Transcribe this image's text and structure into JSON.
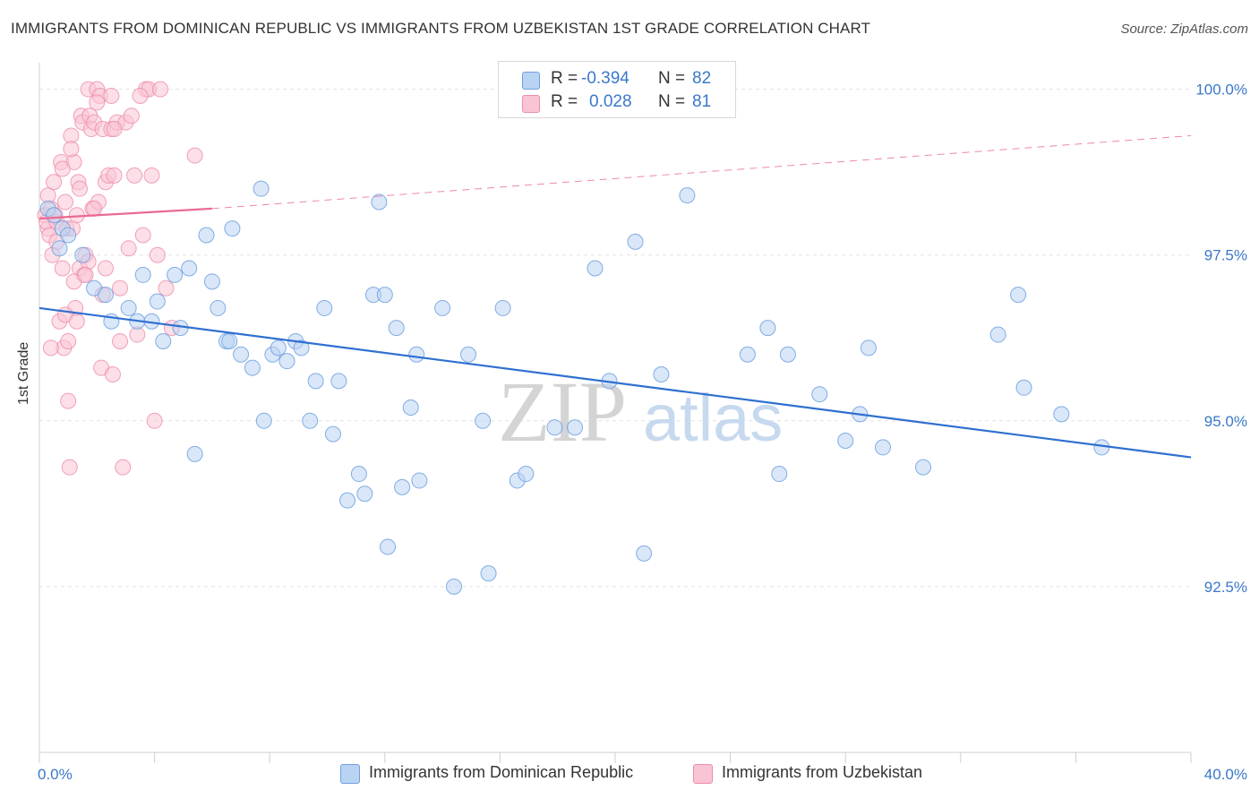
{
  "header": {
    "title": "IMMIGRANTS FROM DOMINICAN REPUBLIC VS IMMIGRANTS FROM UZBEKISTAN 1ST GRADE CORRELATION CHART",
    "source": "Source: ZipAtlas.com"
  },
  "legend": {
    "blue": {
      "r_label": "R =",
      "r_value": "-0.394",
      "n_label": "N =",
      "n_value": "82"
    },
    "pink": {
      "r_label": "R =",
      "r_value": "0.028",
      "n_label": "N =",
      "n_value": "81"
    }
  },
  "bottom_legend": {
    "blue_label": "Immigrants from Dominican Republic",
    "pink_label": "Immigrants from Uzbekistan"
  },
  "watermark": {
    "zip": "ZIP",
    "atlas": "atlas"
  },
  "colors": {
    "blue_fill": "#b9d3f3",
    "blue_stroke": "#6fa0df",
    "blue_line": "#2f6fd1",
    "pink_fill": "#f9c4d4",
    "pink_stroke": "#ec8cab",
    "pink_line": "#e86a93",
    "tick_label": "#3a78c9",
    "grid": "#e3e3e3"
  },
  "chart_data": {
    "type": "scatter",
    "title": "IMMIGRANTS FROM DOMINICAN REPUBLIC VS IMMIGRANTS FROM UZBEKISTAN 1ST GRADE CORRELATION CHART",
    "xlabel": "",
    "ylabel": "1st Grade",
    "xlim": [
      0,
      40
    ],
    "ylim": [
      90.0,
      100.4
    ],
    "x_ticks": [
      "0.0%",
      "40.0%"
    ],
    "y_ticks": [
      {
        "value": 100.0,
        "label": "100.0%"
      },
      {
        "value": 97.5,
        "label": "97.5%"
      },
      {
        "value": 95.0,
        "label": "95.0%"
      },
      {
        "value": 92.5,
        "label": "92.5%"
      }
    ],
    "grid": true,
    "series": [
      {
        "name": "Immigrants from Dominican Republic",
        "color": "#6fa0df",
        "trend": {
          "x": [
            0,
            40
          ],
          "y": [
            96.7,
            94.45
          ],
          "style": "solid"
        },
        "points": [
          [
            0.3,
            98.2
          ],
          [
            0.5,
            98.1
          ],
          [
            0.8,
            97.9
          ],
          [
            1.0,
            97.8
          ],
          [
            0.7,
            97.6
          ],
          [
            1.5,
            97.5
          ],
          [
            1.9,
            97.0
          ],
          [
            2.3,
            96.9
          ],
          [
            2.5,
            96.5
          ],
          [
            3.1,
            96.7
          ],
          [
            3.4,
            96.5
          ],
          [
            3.6,
            97.2
          ],
          [
            3.9,
            96.5
          ],
          [
            4.1,
            96.8
          ],
          [
            4.3,
            96.2
          ],
          [
            4.7,
            97.2
          ],
          [
            4.9,
            96.4
          ],
          [
            5.2,
            97.3
          ],
          [
            5.4,
            94.5
          ],
          [
            5.8,
            97.8
          ],
          [
            6.0,
            97.1
          ],
          [
            6.2,
            96.7
          ],
          [
            6.5,
            96.2
          ],
          [
            6.7,
            97.9
          ],
          [
            7.0,
            96.0
          ],
          [
            7.4,
            95.8
          ],
          [
            7.7,
            98.5
          ],
          [
            7.8,
            95.0
          ],
          [
            8.1,
            96.0
          ],
          [
            8.3,
            96.1
          ],
          [
            8.6,
            95.9
          ],
          [
            8.9,
            96.2
          ],
          [
            9.1,
            96.1
          ],
          [
            9.4,
            95.0
          ],
          [
            9.6,
            95.6
          ],
          [
            9.9,
            96.7
          ],
          [
            10.2,
            94.8
          ],
          [
            10.4,
            95.6
          ],
          [
            10.7,
            93.8
          ],
          [
            11.1,
            94.2
          ],
          [
            11.3,
            93.9
          ],
          [
            11.6,
            96.9
          ],
          [
            11.8,
            98.3
          ],
          [
            12.1,
            93.1
          ],
          [
            12.4,
            96.4
          ],
          [
            12.6,
            94.0
          ],
          [
            12.9,
            95.2
          ],
          [
            13.2,
            94.1
          ],
          [
            13.1,
            96.0
          ],
          [
            14.0,
            96.7
          ],
          [
            14.4,
            92.5
          ],
          [
            14.9,
            96.0
          ],
          [
            15.4,
            95.0
          ],
          [
            15.6,
            92.7
          ],
          [
            16.1,
            96.7
          ],
          [
            16.6,
            94.1
          ],
          [
            16.9,
            94.2
          ],
          [
            17.9,
            94.9
          ],
          [
            18.6,
            94.9
          ],
          [
            19.3,
            97.3
          ],
          [
            19.8,
            95.6
          ],
          [
            20.7,
            97.7
          ],
          [
            21.0,
            93.0
          ],
          [
            21.6,
            95.7
          ],
          [
            22.5,
            98.4
          ],
          [
            24.6,
            96.0
          ],
          [
            25.3,
            96.4
          ],
          [
            25.7,
            94.2
          ],
          [
            26.0,
            96.0
          ],
          [
            27.1,
            95.4
          ],
          [
            28.0,
            94.7
          ],
          [
            28.5,
            95.1
          ],
          [
            28.8,
            96.1
          ],
          [
            29.3,
            94.6
          ],
          [
            30.7,
            94.3
          ],
          [
            33.3,
            96.3
          ],
          [
            34.0,
            96.9
          ],
          [
            34.2,
            95.5
          ],
          [
            35.5,
            95.1
          ],
          [
            36.9,
            94.6
          ],
          [
            6.6,
            96.2
          ],
          [
            12.0,
            96.9
          ]
        ]
      },
      {
        "name": "Immigrants from Uzbekistan",
        "color": "#ec8cab",
        "trend": {
          "x": [
            0,
            6
          ],
          "y": [
            98.05,
            98.2
          ],
          "style": "solid",
          "extended": {
            "x": [
              6,
              40
            ],
            "y": [
              98.2,
              99.3
            ],
            "style": "dashed"
          }
        },
        "points": [
          [
            0.2,
            98.1
          ],
          [
            0.3,
            97.9
          ],
          [
            0.25,
            98.0
          ],
          [
            0.4,
            98.2
          ],
          [
            0.35,
            97.8
          ],
          [
            0.5,
            98.6
          ],
          [
            0.45,
            97.5
          ],
          [
            0.6,
            98.0
          ],
          [
            0.55,
            98.1
          ],
          [
            0.7,
            96.5
          ],
          [
            0.75,
            98.9
          ],
          [
            0.8,
            97.3
          ],
          [
            0.85,
            96.1
          ],
          [
            0.9,
            98.3
          ],
          [
            0.95,
            97.9
          ],
          [
            1.0,
            95.3
          ],
          [
            1.05,
            94.3
          ],
          [
            1.1,
            99.3
          ],
          [
            1.15,
            97.9
          ],
          [
            1.2,
            98.9
          ],
          [
            1.25,
            96.7
          ],
          [
            1.3,
            98.1
          ],
          [
            1.35,
            98.6
          ],
          [
            1.4,
            97.3
          ],
          [
            1.45,
            99.6
          ],
          [
            1.5,
            99.5
          ],
          [
            1.55,
            97.2
          ],
          [
            1.6,
            97.5
          ],
          [
            1.7,
            100.0
          ],
          [
            1.75,
            99.6
          ],
          [
            1.8,
            99.4
          ],
          [
            1.85,
            98.2
          ],
          [
            1.9,
            99.5
          ],
          [
            2.0,
            100.0
          ],
          [
            2.05,
            98.3
          ],
          [
            2.1,
            99.9
          ],
          [
            2.15,
            95.8
          ],
          [
            2.2,
            99.4
          ],
          [
            2.3,
            98.6
          ],
          [
            2.4,
            98.7
          ],
          [
            2.5,
            99.4
          ],
          [
            2.55,
            95.7
          ],
          [
            2.6,
            98.7
          ],
          [
            2.7,
            99.5
          ],
          [
            2.8,
            96.2
          ],
          [
            2.9,
            94.3
          ],
          [
            3.0,
            99.5
          ],
          [
            3.1,
            97.6
          ],
          [
            3.2,
            99.6
          ],
          [
            3.3,
            98.7
          ],
          [
            3.4,
            96.3
          ],
          [
            3.6,
            97.8
          ],
          [
            3.7,
            100.0
          ],
          [
            3.8,
            100.0
          ],
          [
            3.9,
            98.7
          ],
          [
            4.0,
            95.0
          ],
          [
            4.1,
            97.5
          ],
          [
            4.2,
            100.0
          ],
          [
            4.4,
            97.0
          ],
          [
            4.6,
            96.4
          ],
          [
            5.4,
            99.0
          ],
          [
            0.3,
            98.4
          ],
          [
            0.6,
            97.7
          ],
          [
            0.9,
            96.6
          ],
          [
            1.2,
            97.1
          ],
          [
            1.4,
            98.5
          ],
          [
            1.7,
            97.4
          ],
          [
            2.0,
            99.8
          ],
          [
            2.3,
            97.3
          ],
          [
            2.6,
            99.4
          ],
          [
            0.4,
            96.1
          ],
          [
            0.8,
            98.8
          ],
          [
            1.1,
            99.1
          ],
          [
            1.3,
            96.5
          ],
          [
            1.6,
            97.2
          ],
          [
            1.9,
            98.2
          ],
          [
            2.2,
            96.9
          ],
          [
            2.5,
            99.9
          ],
          [
            2.8,
            97.0
          ],
          [
            3.5,
            99.9
          ],
          [
            1.0,
            96.2
          ]
        ]
      }
    ]
  }
}
